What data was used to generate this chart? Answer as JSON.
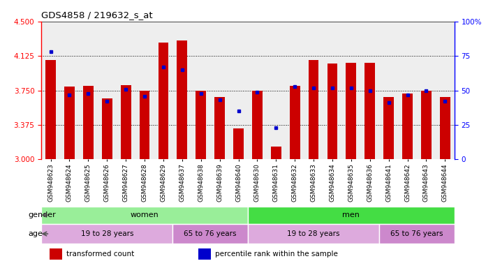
{
  "title": "GDS4858 / 219632_s_at",
  "samples": [
    "GSM948623",
    "GSM948624",
    "GSM948625",
    "GSM948626",
    "GSM948627",
    "GSM948628",
    "GSM948629",
    "GSM948637",
    "GSM948638",
    "GSM948639",
    "GSM948640",
    "GSM948630",
    "GSM948631",
    "GSM948632",
    "GSM948633",
    "GSM948634",
    "GSM948635",
    "GSM948636",
    "GSM948641",
    "GSM948642",
    "GSM948643",
    "GSM948644"
  ],
  "transformed_count": [
    4.08,
    3.79,
    3.8,
    3.66,
    3.81,
    3.75,
    4.27,
    4.29,
    3.75,
    3.68,
    3.34,
    3.75,
    3.14,
    3.8,
    4.08,
    4.04,
    4.05,
    4.05,
    3.68,
    3.72,
    3.75,
    3.68
  ],
  "percentile_rank": [
    78,
    47,
    48,
    42,
    51,
    46,
    67,
    65,
    48,
    43,
    35,
    49,
    23,
    53,
    52,
    52,
    52,
    50,
    41,
    47,
    50,
    42
  ],
  "ylim_left": [
    3.0,
    4.5
  ],
  "ylim_right": [
    0,
    100
  ],
  "yticks_left": [
    3,
    3.375,
    3.75,
    4.125,
    4.5
  ],
  "yticks_right": [
    0,
    25,
    50,
    75,
    100
  ],
  "bar_color": "#cc0000",
  "dot_color": "#0000cc",
  "bar_bottom": 3.0,
  "gender_groups": [
    {
      "label": "women",
      "start": 0,
      "end": 11,
      "color": "#99ee99"
    },
    {
      "label": "men",
      "start": 11,
      "end": 22,
      "color": "#44dd44"
    }
  ],
  "age_groups": [
    {
      "label": "19 to 28 years",
      "start": 0,
      "end": 7,
      "color": "#ddaadd"
    },
    {
      "label": "65 to 76 years",
      "start": 7,
      "end": 11,
      "color": "#cc88cc"
    },
    {
      "label": "19 to 28 years",
      "start": 11,
      "end": 18,
      "color": "#ddaadd"
    },
    {
      "label": "65 to 76 years",
      "start": 18,
      "end": 22,
      "color": "#cc88cc"
    }
  ],
  "legend_items": [
    {
      "label": "transformed count",
      "color": "#cc0000"
    },
    {
      "label": "percentile rank within the sample",
      "color": "#0000cc"
    }
  ],
  "grid_yticks": [
    3.375,
    3.75,
    4.125
  ],
  "background_color": "#eeeeee",
  "fig_width": 6.96,
  "fig_height": 3.84,
  "dpi": 100
}
